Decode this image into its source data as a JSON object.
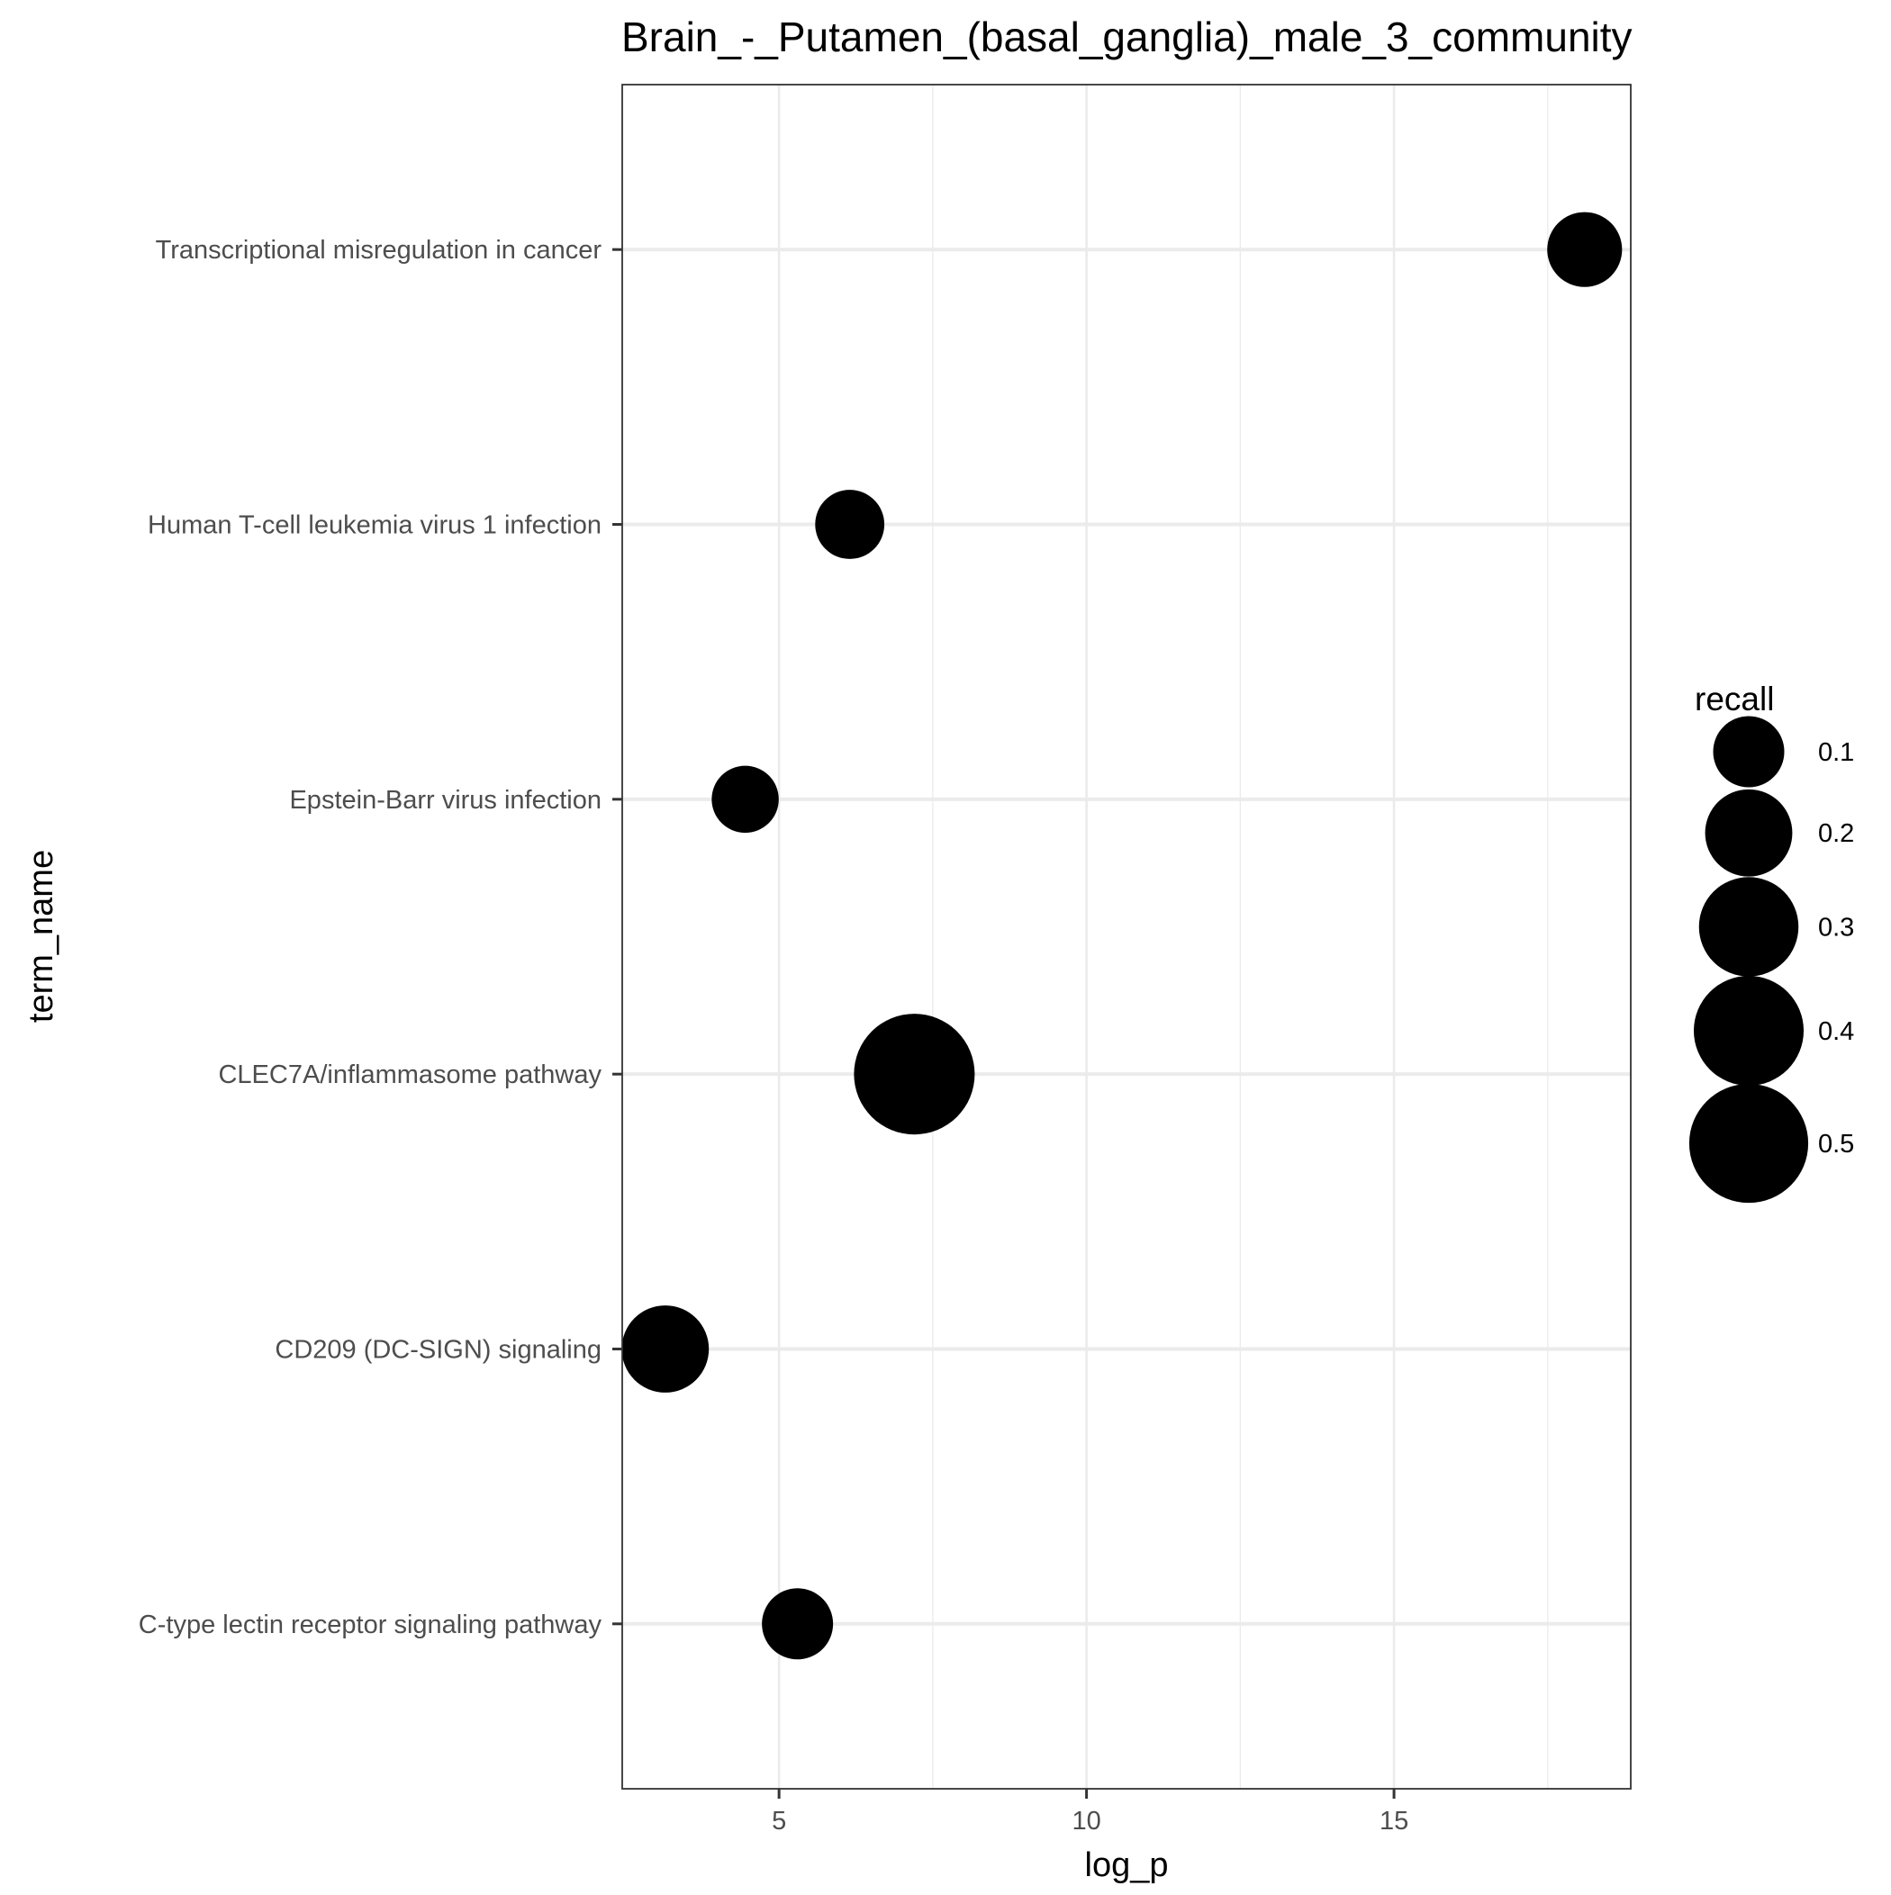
{
  "chart_data": {
    "type": "scatter",
    "title": "Brain_-_Putamen_(basal_ganglia)_male_3_community",
    "xlabel": "log_p",
    "ylabel": "term_name",
    "xlim": [
      2.45,
      18.85
    ],
    "x_ticks": [
      5,
      10,
      15
    ],
    "categories": [
      "Transcriptional misregulation in cancer",
      "Human T-cell leukemia virus 1 infection",
      "Epstein-Barr virus infection",
      "CLEC7A/inflammasome pathway",
      "CD209 (DC-SIGN) signaling",
      "C-type lectin receptor signaling pathway"
    ],
    "points": [
      {
        "term": "Transcriptional misregulation in cancer",
        "log_p": 18.1,
        "recall": 0.12
      },
      {
        "term": "Human T-cell leukemia virus 1 infection",
        "log_p": 6.15,
        "recall": 0.09
      },
      {
        "term": "Epstein-Barr virus infection",
        "log_p": 4.45,
        "recall": 0.08
      },
      {
        "term": "CLEC7A/inflammasome pathway",
        "log_p": 7.2,
        "recall": 0.52
      },
      {
        "term": "CD209 (DC-SIGN) signaling",
        "log_p": 3.15,
        "recall": 0.2
      },
      {
        "term": "C-type lectin receptor signaling pathway",
        "log_p": 5.3,
        "recall": 0.1
      }
    ],
    "legend": {
      "title": "recall",
      "placement": "right",
      "entries": [
        0.1,
        0.2,
        0.3,
        0.4,
        0.5
      ],
      "entry_labels": [
        "0.1",
        "0.2",
        "0.3",
        "0.4",
        "0.5"
      ]
    },
    "grid": true,
    "colors": {
      "point": "#000000",
      "grid": "#ebebeb",
      "panel_border": "#333333",
      "tick_text": "#4d4d4d"
    }
  }
}
